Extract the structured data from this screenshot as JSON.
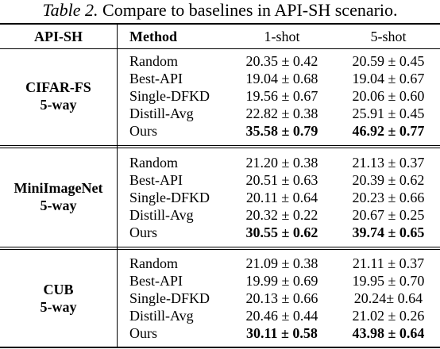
{
  "caption": {
    "label": "Table 2.",
    "text": "Compare to baselines in API-SH scenario."
  },
  "header": {
    "group": "API-SH",
    "method": "Method",
    "shot1": "1-shot",
    "shot5": "5-shot"
  },
  "groups": [
    {
      "name_line1": "CIFAR-FS",
      "name_line2": "5-way",
      "rows": [
        {
          "method": "Random",
          "one_shot": "20.35 ± 0.42",
          "five_shot": "20.59 ± 0.45"
        },
        {
          "method": "Best-API",
          "one_shot": "19.04 ± 0.68",
          "five_shot": "19.04 ± 0.67"
        },
        {
          "method": "Single-DFKD",
          "one_shot": "19.56 ± 0.67",
          "five_shot": "20.06 ± 0.60"
        },
        {
          "method": "Distill-Avg",
          "one_shot": "22.82 ± 0.38",
          "five_shot": "25.91 ± 0.45"
        },
        {
          "method": "Ours",
          "one_shot": "35.58 ± 0.79",
          "five_shot": "46.92 ± 0.77"
        }
      ]
    },
    {
      "name_line1": "MiniImageNet",
      "name_line2": "5-way",
      "rows": [
        {
          "method": "Random",
          "one_shot": "21.20 ± 0.38",
          "five_shot": "21.13 ± 0.37"
        },
        {
          "method": "Best-API",
          "one_shot": "20.51 ± 0.63",
          "five_shot": "20.39 ± 0.62"
        },
        {
          "method": "Single-DFKD",
          "one_shot": "20.11 ± 0.64",
          "five_shot": "20.23 ± 0.66"
        },
        {
          "method": "Distill-Avg",
          "one_shot": "20.32 ± 0.22",
          "five_shot": "20.67 ± 0.25"
        },
        {
          "method": "Ours",
          "one_shot": "30.55 ± 0.62",
          "five_shot": "39.74 ± 0.65"
        }
      ]
    },
    {
      "name_line1": "CUB",
      "name_line2": "5-way",
      "rows": [
        {
          "method": "Random",
          "one_shot": "21.09 ± 0.38",
          "five_shot": "21.11 ± 0.37"
        },
        {
          "method": "Best-API",
          "one_shot": "19.99 ± 0.69",
          "five_shot": "19.95 ± 0.70"
        },
        {
          "method": "Single-DFKD",
          "one_shot": "20.13 ± 0.66",
          "five_shot": "20.24± 0.64"
        },
        {
          "method": "Distill-Avg",
          "one_shot": "20.46 ± 0.44",
          "five_shot": "21.02 ± 0.26"
        },
        {
          "method": "Ours",
          "one_shot": "30.11 ± 0.58",
          "five_shot": "43.98 ± 0.64"
        }
      ]
    }
  ]
}
